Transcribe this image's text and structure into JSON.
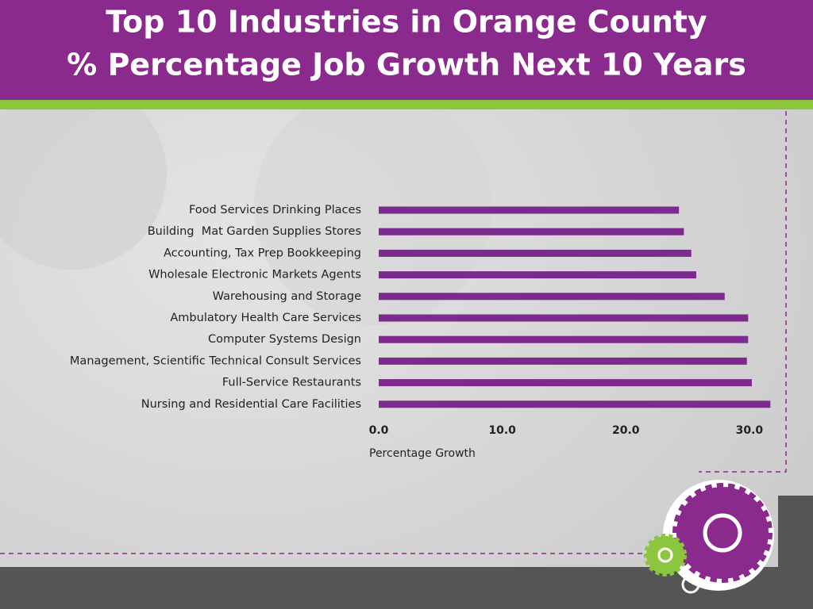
{
  "chart_data": {
    "type": "bar",
    "orientation": "horizontal",
    "title": "Top 10 Industries in Orange County",
    "subtitle": "% Percentage Job Growth Next 10 Years",
    "x_label": "Percentage Growth",
    "categories": [
      "Food Services Drinking Places",
      "Building  Mat Garden Supplies Stores",
      "Accounting, Tax Prep Bookkeeping",
      "Wholesale Electronic Markets Agents",
      "Warehousing and Storage",
      "Ambulatory Health Care Services",
      "Computer Systems Design",
      "Management, Scientific Technical Consult Services",
      "Full-Service Restaurants",
      "Nursing and Residential Care Facilities"
    ],
    "values": [
      24.3,
      24.7,
      25.3,
      25.7,
      28.0,
      29.9,
      29.9,
      29.8,
      30.2,
      31.7
    ],
    "color": "#7d2a8f",
    "xlim": [
      0,
      32
    ],
    "xticks": [
      {
        "value": 0,
        "label": "0.0"
      },
      {
        "value": 10,
        "label": "10.0"
      },
      {
        "value": 20,
        "label": "20.0"
      },
      {
        "value": 30,
        "label": "30.0"
      }
    ],
    "grid": false
  }
}
